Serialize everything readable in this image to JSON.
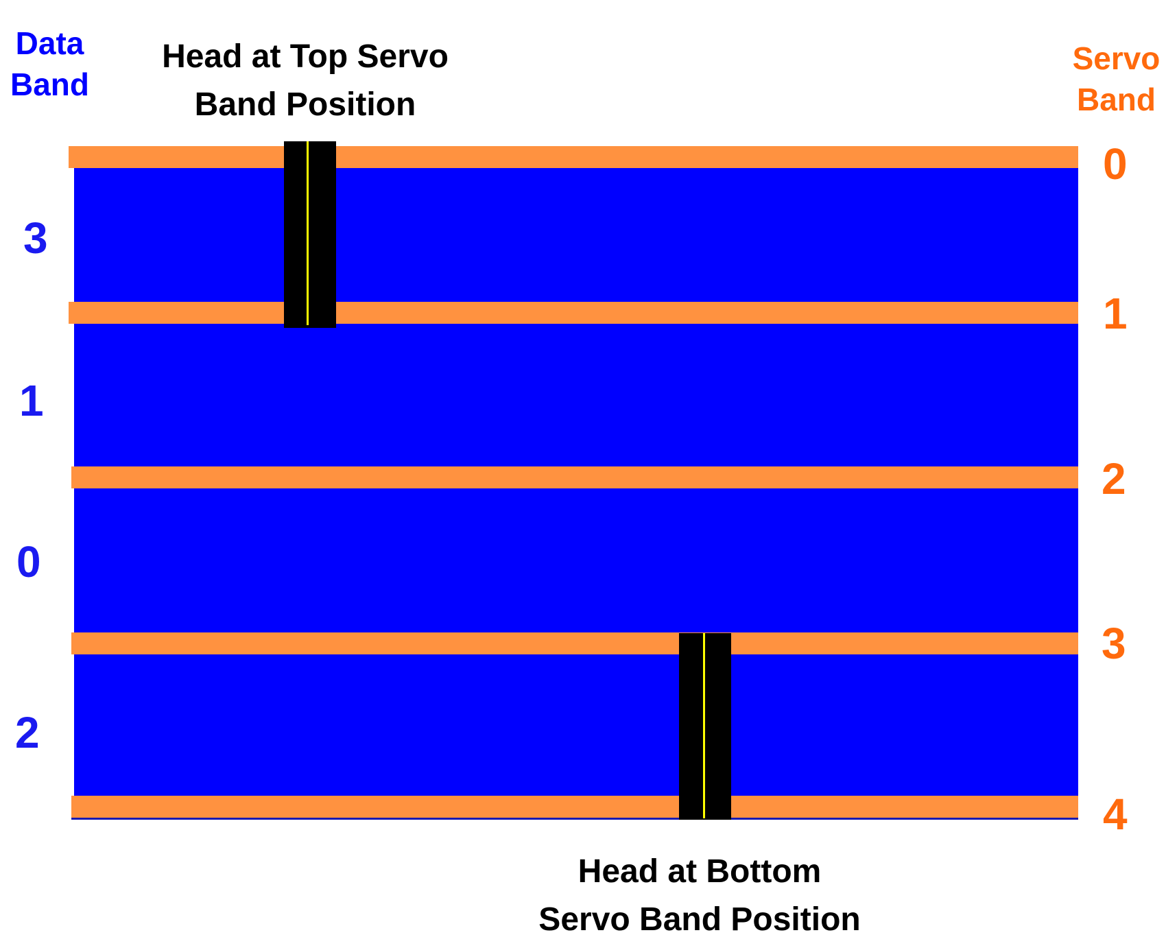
{
  "header": {
    "data_band_line1": "Data",
    "data_band_line2": "Band",
    "servo_band_line1": "Servo",
    "servo_band_line2": "Band"
  },
  "captions": {
    "top_head_line1": "Head at Top Servo",
    "top_head_line2": "Band Position",
    "bottom_head_line1": "Head at Bottom",
    "bottom_head_line2": "Servo Band Position"
  },
  "data_bands": [
    "3",
    "1",
    "0",
    "2"
  ],
  "servo_bands": [
    "0",
    "1",
    "2",
    "3",
    "4"
  ],
  "colors": {
    "data_band": "#0000FF",
    "servo_band": "#FF9240",
    "servo_label": "#FF6A0D",
    "data_label": "#1A1AF0",
    "head": "#000000",
    "head_line": "#FFFF00"
  }
}
